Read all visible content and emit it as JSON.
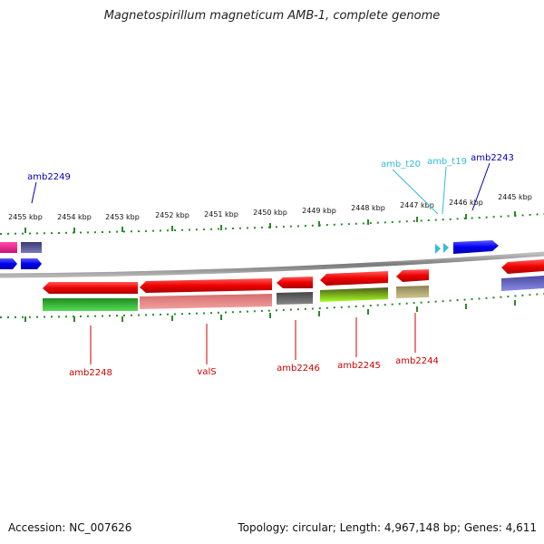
{
  "title": "Magnetospirillum magneticum AMB-1, complete genome",
  "footer": {
    "accession": "Accession: NC_007626",
    "summary": "Topology: circular; Length: 4,967,148 bp; Genes: 4,611"
  },
  "scale_ticks": [
    "2455 kbp",
    "2454 kbp",
    "2453 kbp",
    "2452 kbp",
    "2451 kbp",
    "2450 kbp",
    "2449 kbp",
    "2448 kbp",
    "2447 kbp",
    "2446 kbp",
    "2445 kbp"
  ],
  "top_labels": [
    {
      "name": "amb2249",
      "color": "#0000aa"
    },
    {
      "name": "amb_t20",
      "color": "#33bbdd"
    },
    {
      "name": "amb_t19",
      "color": "#33bbdd"
    },
    {
      "name": "amb2243",
      "color": "#0000aa"
    }
  ],
  "bottom_labels": [
    {
      "name": "amb2248",
      "color": "#cc0000"
    },
    {
      "name": "valS",
      "color": "#cc0000"
    },
    {
      "name": "amb2246",
      "color": "#cc0000"
    },
    {
      "name": "amb2245",
      "color": "#cc0000"
    },
    {
      "name": "amb2244",
      "color": "#cc0000"
    }
  ],
  "colors": {
    "forward_cds": "#0000ee",
    "reverse_cds": "#ee0000",
    "trna": "#33bbdd",
    "backbone": "#8a8a8a",
    "tick": "#2a8a2a"
  }
}
